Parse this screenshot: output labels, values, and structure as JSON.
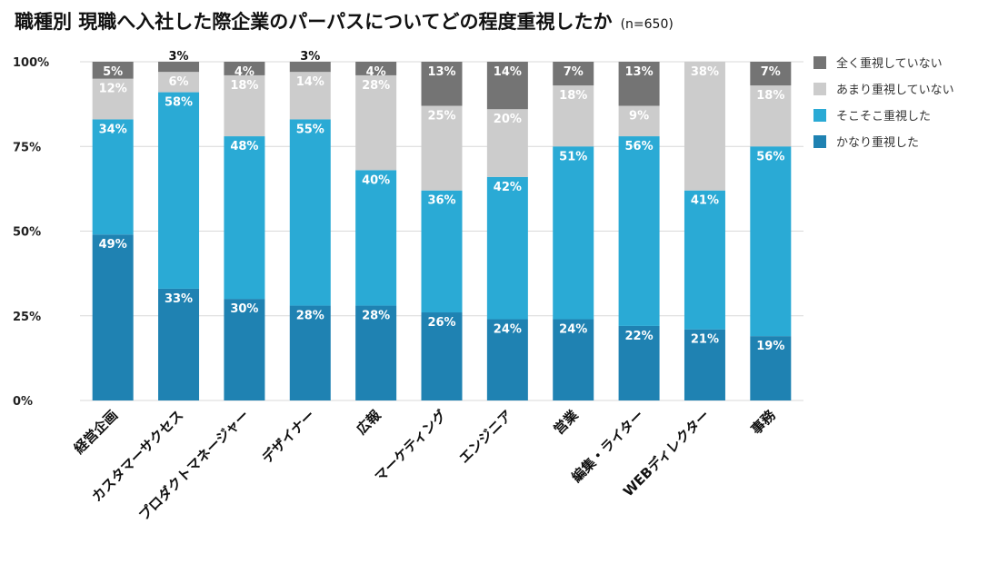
{
  "title": "職種別 現職へ入社した際企業のパーパスについてどの程度重視したか",
  "subtitle": "(n=650)",
  "chart_data": {
    "type": "bar",
    "stacked": true,
    "title": "職種別 現職へ入社した際企業のパーパスについてどの程度重視したか",
    "subtitle": "(n=650)",
    "categories": [
      "経営企画",
      "カスタマーサクセス",
      "プロダクトマネージャー",
      "デザイナー",
      "広報",
      "マーケティング",
      "エンジニア",
      "営業",
      "編集・ライター",
      "WEBディレクター",
      "事務"
    ],
    "series": [
      {
        "name": "かなり重視した",
        "color": "#1f82b2",
        "values": [
          49,
          33,
          30,
          28,
          28,
          26,
          24,
          24,
          22,
          21,
          19
        ]
      },
      {
        "name": "そこそこ重視した",
        "color": "#2aaad5",
        "values": [
          34,
          58,
          48,
          55,
          40,
          36,
          42,
          51,
          56,
          41,
          56
        ]
      },
      {
        "name": "あまり重視していない",
        "color": "#cccccc",
        "values": [
          12,
          6,
          18,
          14,
          28,
          25,
          20,
          18,
          9,
          38,
          18
        ]
      },
      {
        "name": "全く重視していない",
        "color": "#747474",
        "values": [
          5,
          3,
          4,
          3,
          4,
          13,
          14,
          7,
          13,
          0,
          7
        ]
      }
    ],
    "yticks": [
      "0%",
      "25%",
      "50%",
      "75%",
      "100%"
    ],
    "ylim": [
      0,
      100
    ],
    "grid": true,
    "legend": "right"
  }
}
